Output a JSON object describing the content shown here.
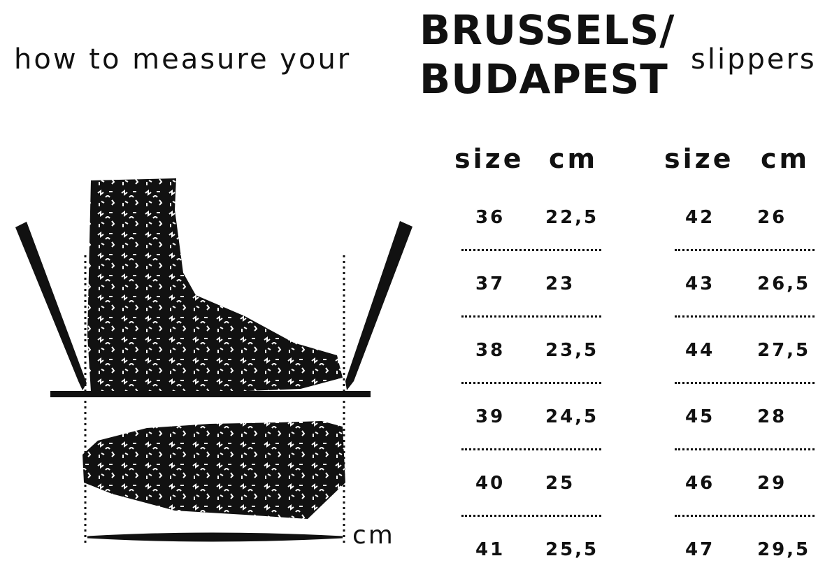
{
  "title": {
    "prefix": "how to measure your",
    "model_line1": "BRUSSELS/",
    "model_line2": "BUDAPEST",
    "suffix": "slippers"
  },
  "illustration": {
    "measure_unit_label": "cm",
    "ink_color": "#111111"
  },
  "size_table": {
    "columns": [
      {
        "size_header": "size",
        "cm_header": "cm",
        "rows": [
          {
            "size": "36",
            "cm": "22,5"
          },
          {
            "size": "37",
            "cm": "23"
          },
          {
            "size": "38",
            "cm": "23,5"
          },
          {
            "size": "39",
            "cm": "24,5"
          },
          {
            "size": "40",
            "cm": "25"
          },
          {
            "size": "41",
            "cm": "25,5"
          }
        ]
      },
      {
        "size_header": "size",
        "cm_header": "cm",
        "rows": [
          {
            "size": "42",
            "cm": "26"
          },
          {
            "size": "43",
            "cm": "26,5"
          },
          {
            "size": "44",
            "cm": "27,5"
          },
          {
            "size": "45",
            "cm": "28"
          },
          {
            "size": "46",
            "cm": "29"
          },
          {
            "size": "47",
            "cm": "29,5"
          }
        ]
      }
    ]
  }
}
